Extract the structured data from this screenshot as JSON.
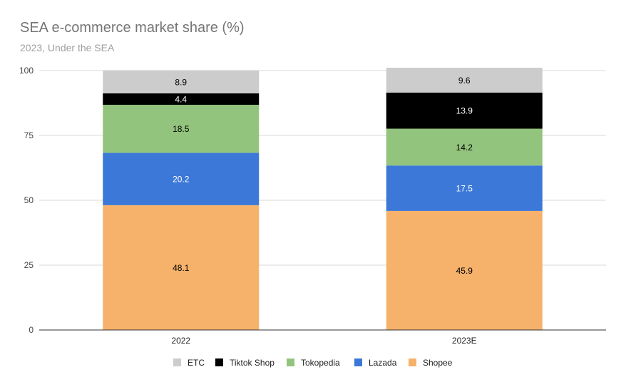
{
  "chart_data": {
    "type": "bar",
    "stacked": true,
    "title": "SEA e-commerce market share (%)",
    "subtitle": "2023, Under the SEA",
    "xlabel": "",
    "ylabel": "",
    "categories": [
      "2022",
      "2023E"
    ],
    "ylim": [
      0,
      100
    ],
    "yticks": [
      "0",
      "25",
      "50",
      "75",
      "100"
    ],
    "grid": true,
    "legend_position": "bottom",
    "series": [
      {
        "name": "Shopee",
        "values": [
          48.1,
          45.9
        ],
        "color": "#f6b26b",
        "label_color": "#000000"
      },
      {
        "name": "Lazada",
        "values": [
          20.2,
          17.5
        ],
        "color": "#3c78d8",
        "label_color": "#ffffff"
      },
      {
        "name": "Tokopedia",
        "values": [
          18.5,
          14.2
        ],
        "color": "#93c47d",
        "label_color": "#000000"
      },
      {
        "name": "Tiktok Shop",
        "values": [
          4.4,
          13.9
        ],
        "color": "#000000",
        "label_color": "#ffffff"
      },
      {
        "name": "ETC",
        "values": [
          8.9,
          9.6
        ],
        "color": "#cccccc",
        "label_color": "#000000"
      }
    ],
    "legend_order": [
      "ETC",
      "Tiktok Shop",
      "Tokopedia",
      "Lazada",
      "Shopee"
    ]
  }
}
